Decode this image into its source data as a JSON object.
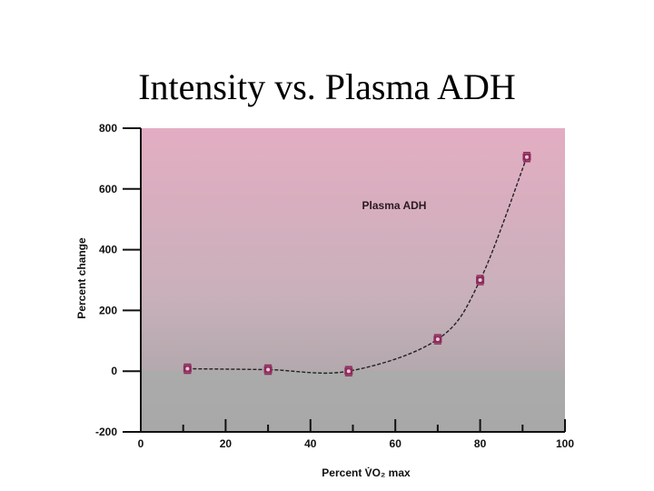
{
  "slide": {
    "title": "Intensity vs. Plasma ADH"
  },
  "chart_data": {
    "type": "line",
    "title": "Plasma ADH",
    "xlabel": "Percent V̇O₂ max",
    "ylabel": "Percent change",
    "xlim": [
      0,
      100
    ],
    "ylim": [
      -200,
      800
    ],
    "x_ticks": [
      0,
      20,
      40,
      60,
      80,
      100
    ],
    "y_ticks": [
      -200,
      0,
      200,
      400,
      600,
      800
    ],
    "grid": false,
    "series": [
      {
        "x": [
          11,
          30,
          49,
          70,
          80,
          91
        ],
        "y": [
          8,
          5,
          0,
          105,
          300,
          705
        ]
      }
    ],
    "colors": {
      "marker": "#8e2b5c",
      "line": "#222222",
      "bg_top": "#e3adc2",
      "bg_bottom": "#ababab"
    }
  }
}
